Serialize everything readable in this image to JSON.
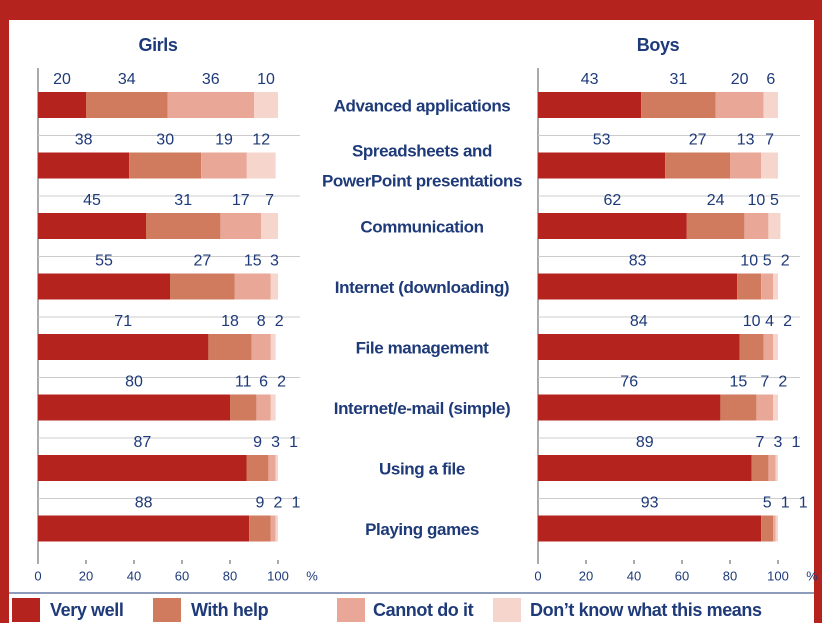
{
  "chart_data": [
    {
      "type": "stacked-bar-horizontal",
      "title": "Girls",
      "categories": [
        "Advanced applications",
        "Spreadsheets and\nPowerPoint presentations",
        "Communication",
        "Internet (downloading)",
        "File management",
        "Internet/e-mail (simple)",
        "Using a file",
        "Playing games"
      ],
      "series": [
        {
          "name": "Very well",
          "color": "#b5231f",
          "values": [
            20,
            38,
            45,
            55,
            71,
            80,
            87,
            88
          ]
        },
        {
          "name": "With help",
          "color": "#d07a5e",
          "values": [
            34,
            30,
            31,
            27,
            18,
            11,
            9,
            9
          ]
        },
        {
          "name": "Cannot do it",
          "color": "#e8a797",
          "values": [
            36,
            19,
            17,
            15,
            8,
            6,
            3,
            2
          ]
        },
        {
          "name": "Don’t know what this means",
          "color": "#f6d6cc",
          "values": [
            10,
            12,
            7,
            3,
            2,
            2,
            1,
            1
          ]
        }
      ],
      "xlim": [
        0,
        100
      ],
      "xticks": [
        0,
        20,
        40,
        60,
        80,
        100
      ],
      "xunit": "%"
    },
    {
      "type": "stacked-bar-horizontal",
      "title": "Boys",
      "series": [
        {
          "name": "Very well",
          "color": "#b5231f",
          "values": [
            43,
            53,
            62,
            83,
            84,
            76,
            89,
            93
          ]
        },
        {
          "name": "With help",
          "color": "#d07a5e",
          "values": [
            31,
            27,
            24,
            10,
            10,
            15,
            7,
            5
          ]
        },
        {
          "name": "Cannot do it",
          "color": "#e8a797",
          "values": [
            20,
            13,
            10,
            5,
            4,
            7,
            3,
            1
          ]
        },
        {
          "name": "Don’t know what this means",
          "color": "#f6d6cc",
          "values": [
            6,
            7,
            5,
            2,
            2,
            2,
            1,
            1
          ]
        }
      ],
      "xlim": [
        0,
        100
      ],
      "xticks": [
        0,
        20,
        40,
        60,
        80,
        100
      ],
      "xunit": "%"
    }
  ]
}
